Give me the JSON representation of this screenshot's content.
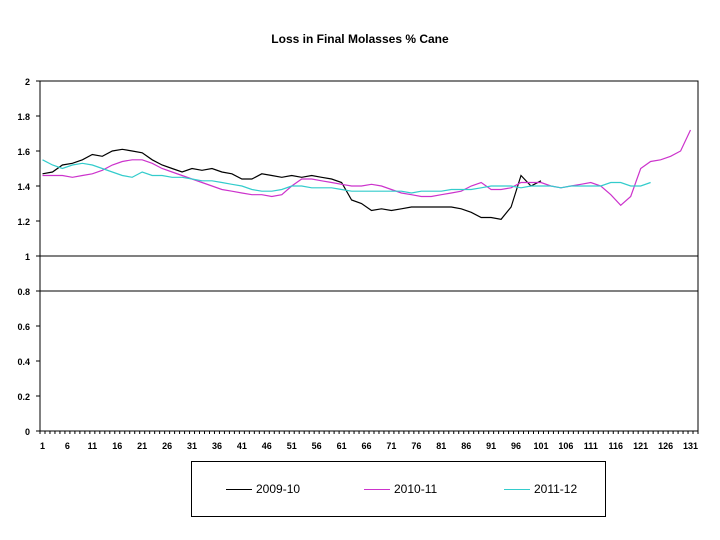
{
  "chart_data": {
    "type": "line",
    "title": "Loss in Final Molasses % Cane",
    "xlabel": "",
    "ylabel": "",
    "ylim": [
      0,
      2
    ],
    "y_ticks": [
      "0",
      "0.2",
      "0.4",
      "0.6",
      "0.8",
      "1",
      "1.2",
      "1.4",
      "1.6",
      "1.8",
      "2"
    ],
    "x_tick_labels": [
      "1",
      "6",
      "11",
      "16",
      "21",
      "26",
      "31",
      "36",
      "41",
      "46",
      "51",
      "56",
      "61",
      "66",
      "71",
      "76",
      "81",
      "86",
      "91",
      "96",
      "101",
      "106",
      "111",
      "116",
      "121",
      "126",
      "131"
    ],
    "reference_lines": [
      1.0,
      0.8
    ],
    "grid": false,
    "legend_position": "bottom",
    "series": [
      {
        "name": "2009-10",
        "color": "#000000",
        "x": [
          1,
          3,
          5,
          7,
          9,
          11,
          13,
          15,
          17,
          19,
          21,
          23,
          25,
          27,
          29,
          31,
          33,
          35,
          37,
          39,
          41,
          43,
          45,
          47,
          49,
          51,
          53,
          55,
          57,
          59,
          61,
          63,
          65,
          67,
          69,
          71,
          73,
          75,
          77,
          79,
          81,
          83,
          85,
          87,
          89,
          91,
          93,
          95,
          97,
          99,
          101
        ],
        "y": [
          1.47,
          1.48,
          1.52,
          1.53,
          1.55,
          1.58,
          1.57,
          1.6,
          1.61,
          1.6,
          1.59,
          1.55,
          1.52,
          1.5,
          1.48,
          1.5,
          1.49,
          1.5,
          1.48,
          1.47,
          1.44,
          1.44,
          1.47,
          1.46,
          1.45,
          1.46,
          1.45,
          1.46,
          1.45,
          1.44,
          1.42,
          1.32,
          1.3,
          1.26,
          1.27,
          1.26,
          1.27,
          1.28,
          1.28,
          1.28,
          1.28,
          1.28,
          1.27,
          1.25,
          1.22,
          1.22,
          1.21,
          1.28,
          1.46,
          1.4,
          1.43
        ]
      },
      {
        "name": "2010-11",
        "color": "#cc33cc",
        "x": [
          1,
          3,
          5,
          7,
          9,
          11,
          13,
          15,
          17,
          19,
          21,
          23,
          25,
          27,
          29,
          31,
          33,
          35,
          37,
          39,
          41,
          43,
          45,
          47,
          49,
          51,
          53,
          55,
          57,
          59,
          61,
          63,
          65,
          67,
          69,
          71,
          73,
          75,
          77,
          79,
          81,
          83,
          85,
          87,
          89,
          91,
          93,
          95,
          97,
          99,
          101,
          103,
          105,
          107,
          109,
          111,
          113,
          115,
          117,
          119,
          121,
          123,
          125,
          127,
          129,
          131
        ],
        "y": [
          1.46,
          1.46,
          1.46,
          1.45,
          1.46,
          1.47,
          1.49,
          1.52,
          1.54,
          1.55,
          1.55,
          1.53,
          1.5,
          1.48,
          1.46,
          1.44,
          1.42,
          1.4,
          1.38,
          1.37,
          1.36,
          1.35,
          1.35,
          1.34,
          1.35,
          1.4,
          1.44,
          1.44,
          1.43,
          1.42,
          1.41,
          1.4,
          1.4,
          1.41,
          1.4,
          1.38,
          1.36,
          1.35,
          1.34,
          1.34,
          1.35,
          1.36,
          1.37,
          1.4,
          1.42,
          1.38,
          1.38,
          1.39,
          1.42,
          1.42,
          1.42,
          1.4,
          1.39,
          1.4,
          1.41,
          1.42,
          1.4,
          1.35,
          1.29,
          1.34,
          1.5,
          1.54,
          1.55,
          1.57,
          1.6,
          1.72
        ]
      },
      {
        "name": "2011-12",
        "color": "#33cccc",
        "x": [
          1,
          3,
          5,
          7,
          9,
          11,
          13,
          15,
          17,
          19,
          21,
          23,
          25,
          27,
          29,
          31,
          33,
          35,
          37,
          39,
          41,
          43,
          45,
          47,
          49,
          51,
          53,
          55,
          57,
          59,
          61,
          63,
          65,
          67,
          69,
          71,
          73,
          75,
          77,
          79,
          81,
          83,
          85,
          87,
          89,
          91,
          93,
          95,
          97,
          99,
          101,
          103,
          105,
          107,
          109,
          111,
          113,
          115,
          117,
          119,
          121,
          123
        ],
        "y": [
          1.55,
          1.52,
          1.5,
          1.52,
          1.53,
          1.52,
          1.5,
          1.48,
          1.46,
          1.45,
          1.48,
          1.46,
          1.46,
          1.45,
          1.45,
          1.44,
          1.43,
          1.43,
          1.42,
          1.41,
          1.4,
          1.38,
          1.37,
          1.37,
          1.38,
          1.4,
          1.4,
          1.39,
          1.39,
          1.39,
          1.38,
          1.37,
          1.37,
          1.37,
          1.37,
          1.37,
          1.37,
          1.36,
          1.37,
          1.37,
          1.37,
          1.38,
          1.38,
          1.38,
          1.39,
          1.4,
          1.4,
          1.4,
          1.39,
          1.4,
          1.4,
          1.4,
          1.39,
          1.4,
          1.4,
          1.4,
          1.4,
          1.42,
          1.42,
          1.4,
          1.4,
          1.42
        ]
      }
    ]
  }
}
